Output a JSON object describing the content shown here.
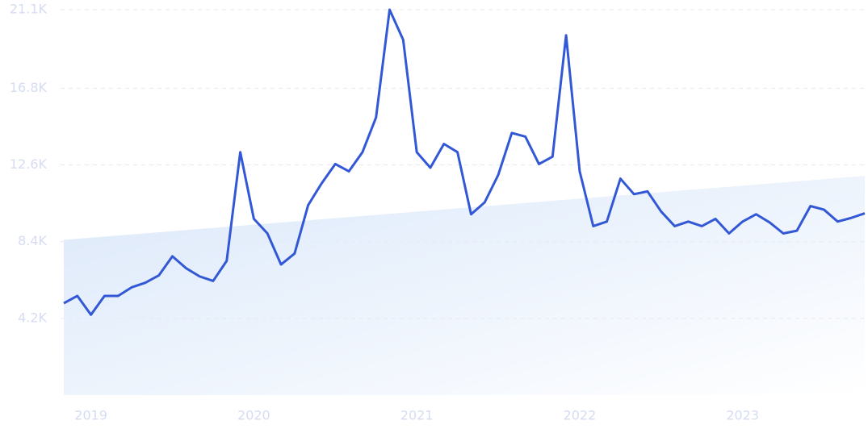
{
  "chart_data": {
    "type": "line",
    "categories": [
      null,
      null,
      "2019",
      null,
      null,
      null,
      null,
      null,
      null,
      null,
      null,
      null,
      null,
      null,
      "2020",
      null,
      null,
      null,
      null,
      null,
      null,
      null,
      null,
      null,
      null,
      null,
      "2021",
      null,
      null,
      null,
      null,
      null,
      null,
      null,
      null,
      null,
      null,
      null,
      "2022",
      null,
      null,
      null,
      null,
      null,
      null,
      null,
      null,
      null,
      null,
      null,
      "2023",
      null,
      null,
      null,
      null,
      null,
      null,
      null,
      null,
      null
    ],
    "series": [
      {
        "color": "#3358d6",
        "values": [
          5030,
          5430,
          4400,
          5430,
          5430,
          5900,
          6150,
          6550,
          7600,
          6950,
          6500,
          6250,
          7350,
          13300,
          9650,
          8850,
          7150,
          7750,
          10400,
          11600,
          12650,
          12250,
          13300,
          15200,
          21100,
          19450,
          13300,
          12450,
          13750,
          13300,
          9900,
          10550,
          12050,
          14350,
          14150,
          12650,
          13050,
          19700,
          12250,
          9250,
          9500,
          11850,
          11000,
          11150,
          10050,
          9250,
          9500,
          9250,
          9650,
          8850,
          9500,
          9900,
          9450,
          8850,
          9000,
          10350,
          10150,
          9500,
          9700,
          9950
        ]
      }
    ],
    "trend": {
      "color": "#dbe8fa",
      "values": [
        8500,
        12000
      ]
    },
    "ylim": [
      0,
      21100
    ],
    "yticks": [
      {
        "value": 4200,
        "label": "4.2K"
      },
      {
        "value": 8400,
        "label": "8.4K"
      },
      {
        "value": 12600,
        "label": "12.6K"
      },
      {
        "value": 16800,
        "label": "16.8K"
      },
      {
        "value": 21100,
        "label": "21.1K"
      }
    ],
    "grid": true
  }
}
